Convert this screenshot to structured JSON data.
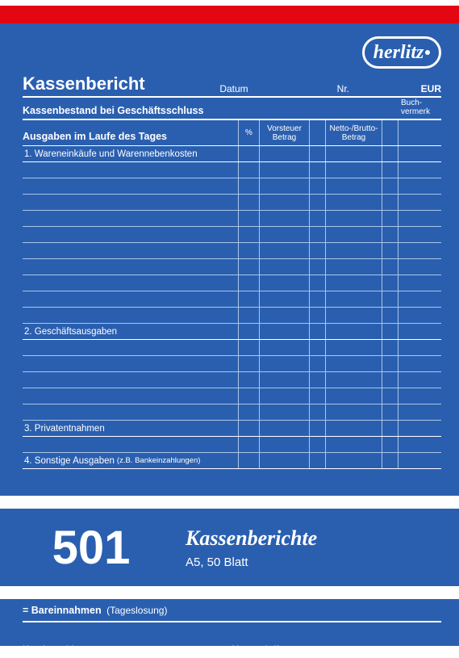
{
  "brand": "herlitz",
  "colors": {
    "blue": "#2a5fb0",
    "red": "#e30613",
    "line_light": "#aac6e6",
    "white": "#ffffff"
  },
  "header": {
    "title": "Kassenbericht",
    "date_label": "Datum",
    "nr_label": "Nr.",
    "eur": "EUR"
  },
  "row_kassenbestand": "Kassenbestand bei Geschäftsschluss",
  "buchvermerk": "Buch-\nvermerk",
  "row_ausgaben": "Ausgaben im Laufe des Tages",
  "columns": {
    "percent": "%",
    "vorsteuer": "Vorsteuer\nBetrag",
    "netto": "Netto-/Brutto-\nBetrag"
  },
  "sections": {
    "s1": "1. Wareneinkäufe und Warennebenkosten",
    "s2": "2. Geschäftsausgaben",
    "s3": "3. Privatentnahmen",
    "s4_a": "4. Sonstige Ausgaben",
    "s4_b": "(z.B. Bankeinzahlungen)"
  },
  "rows_after": {
    "s1": 10,
    "s2": 5,
    "s3": 1
  },
  "product": {
    "number": "501",
    "title": "Kassenberichte",
    "sub": "A5, 50 Blatt"
  },
  "footer": {
    "bareinnahmen_a": "= Bareinnahmen",
    "bareinnahmen_b": "(Tageslosung)",
    "kundenzahl": "Kundenzahl",
    "unterschrift": "Unterschrift"
  }
}
